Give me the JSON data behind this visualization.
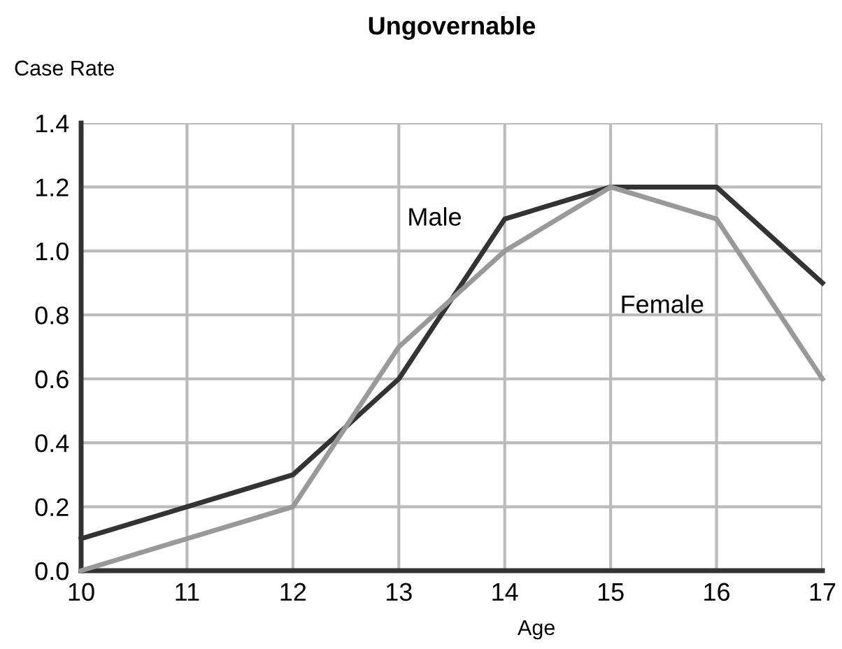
{
  "chart_data": {
    "type": "line",
    "title": "Ungovernable",
    "xlabel": "Age",
    "ylabel": "Case Rate",
    "x": [
      10,
      11,
      12,
      13,
      14,
      15,
      16,
      17
    ],
    "series": [
      {
        "name": "Male",
        "color": "#333333",
        "values": [
          0.1,
          0.2,
          0.3,
          0.6,
          1.1,
          1.2,
          1.2,
          0.9
        ]
      },
      {
        "name": "Female",
        "color": "#999999",
        "values": [
          0.0,
          0.1,
          0.2,
          0.7,
          1.0,
          1.2,
          1.1,
          0.6
        ]
      }
    ],
    "xlim": [
      10,
      17
    ],
    "xticks": [
      10,
      11,
      12,
      13,
      14,
      15,
      16,
      17
    ],
    "ylim": [
      0,
      1.4
    ],
    "yticks": [
      {
        "value": 0,
        "label": "0.0"
      },
      {
        "value": 0.2,
        "label": "0.2"
      },
      {
        "value": 0.4,
        "label": "0.4"
      },
      {
        "value": 0.6,
        "label": "0.6"
      },
      {
        "value": 0.8,
        "label": "0.8"
      },
      {
        "value": 1.0,
        "label": "1.0"
      },
      {
        "value": 1.2,
        "label": "1.2"
      },
      {
        "value": 1.4,
        "label": "1.4"
      }
    ],
    "grid": true,
    "legend": false,
    "marker": "none",
    "line_style": "solid"
  }
}
